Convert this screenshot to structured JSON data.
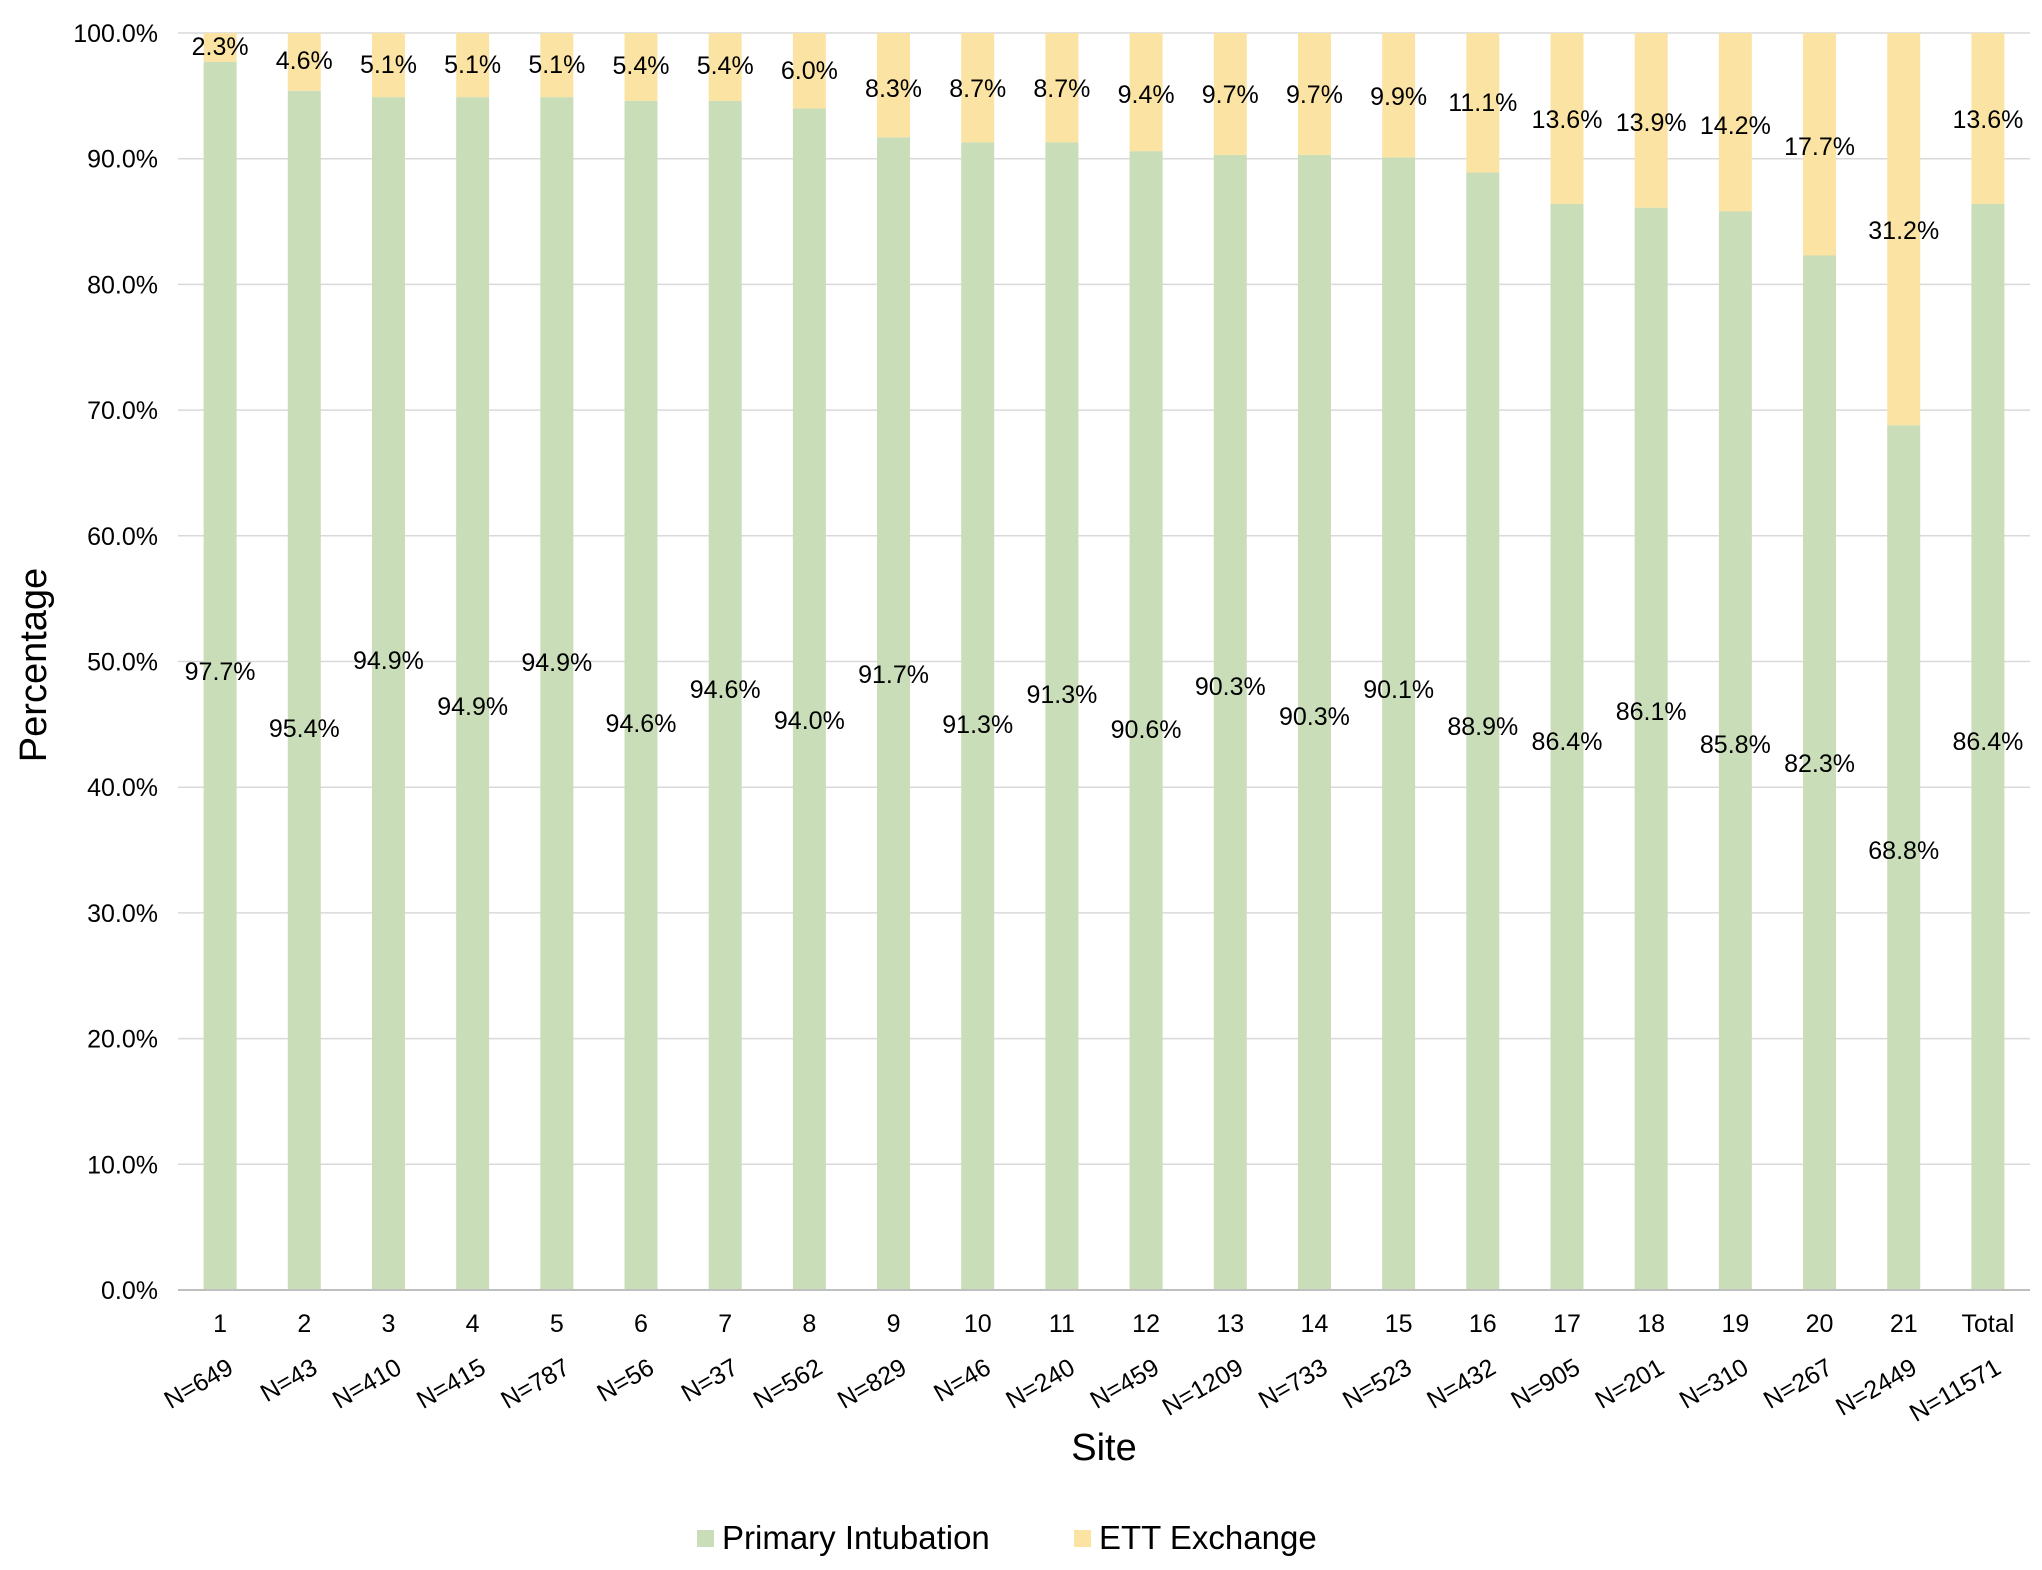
{
  "chart_data": {
    "type": "bar",
    "stacked": true,
    "xlabel": "Site",
    "ylabel": "Percentage",
    "ylim": [
      0,
      100
    ],
    "y_ticks": [
      "0.0%",
      "10.0%",
      "20.0%",
      "30.0%",
      "40.0%",
      "50.0%",
      "60.0%",
      "70.0%",
      "80.0%",
      "90.0%",
      "100.0%"
    ],
    "grid": true,
    "legend": "bottom",
    "categories": [
      "1",
      "2",
      "3",
      "4",
      "5",
      "6",
      "7",
      "8",
      "9",
      "10",
      "11",
      "12",
      "13",
      "14",
      "15",
      "16",
      "17",
      "18",
      "19",
      "20",
      "21",
      "Total"
    ],
    "sample_sizes": [
      "N=649",
      "N=43",
      "N=410",
      "N=415",
      "N=787",
      "N=56",
      "N=37",
      "N=562",
      "N=829",
      "N=46",
      "N=240",
      "N=459",
      "N=1209",
      "N=733",
      "N=523",
      "N=432",
      "N=905",
      "N=201",
      "N=310",
      "N=267",
      "N=2449",
      "N=11571"
    ],
    "series": [
      {
        "name": "Primary Intubation",
        "color": "#c9ddb8",
        "values": [
          97.7,
          95.4,
          94.9,
          94.9,
          94.9,
          94.6,
          94.6,
          94.0,
          91.7,
          91.3,
          91.3,
          90.6,
          90.3,
          90.3,
          90.1,
          88.9,
          86.4,
          86.1,
          85.8,
          82.3,
          68.8,
          86.4
        ],
        "labels": [
          "97.7%",
          "95.4%",
          "94.9%",
          "94.9%",
          "94.9%",
          "94.6%",
          "94.6%",
          "94.0%",
          "91.7%",
          "91.3%",
          "91.3%",
          "90.6%",
          "90.3%",
          "90.3%",
          "90.1%",
          "88.9%",
          "86.4%",
          "86.1%",
          "85.8%",
          "82.3%",
          "68.8%",
          "86.4%"
        ]
      },
      {
        "name": "ETT Exchange",
        "color": "#fbe4a3",
        "values": [
          2.3,
          4.6,
          5.1,
          5.1,
          5.1,
          5.4,
          5.4,
          6.0,
          8.3,
          8.7,
          8.7,
          9.4,
          9.7,
          9.7,
          9.9,
          11.1,
          13.6,
          13.9,
          14.2,
          17.7,
          31.2,
          13.6
        ],
        "labels": [
          "2.3%",
          "4.6%",
          "5.1%",
          "5.1%",
          "5.1%",
          "5.4%",
          "5.4%",
          "6.0%",
          "8.3%",
          "8.7%",
          "8.7%",
          "9.4%",
          "9.7%",
          "9.7%",
          "9.9%",
          "11.1%",
          "13.6%",
          "13.9%",
          "14.2%",
          "17.7%",
          "31.2%",
          "13.6%"
        ]
      }
    ]
  }
}
